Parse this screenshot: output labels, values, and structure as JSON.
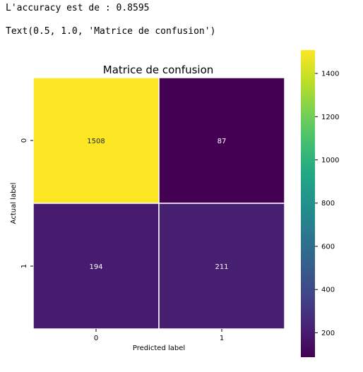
{
  "output": {
    "line1": "L'accuracy est de : 0.8595",
    "line2": "Text(0.5, 1.0, 'Matrice de confusion')"
  },
  "chart_data": {
    "type": "heatmap",
    "title": "Matrice de confusion",
    "xlabel": "Predicted label",
    "ylabel": "Actual label",
    "x_categories": [
      "0",
      "1"
    ],
    "y_categories": [
      "0",
      "1"
    ],
    "values": [
      [
        1508,
        87
      ],
      [
        194,
        211
      ]
    ],
    "colormap": "viridis",
    "colorbar": {
      "vmin": 87,
      "vmax": 1508,
      "ticks": [
        200,
        400,
        600,
        800,
        1000,
        1200,
        1400
      ]
    }
  }
}
